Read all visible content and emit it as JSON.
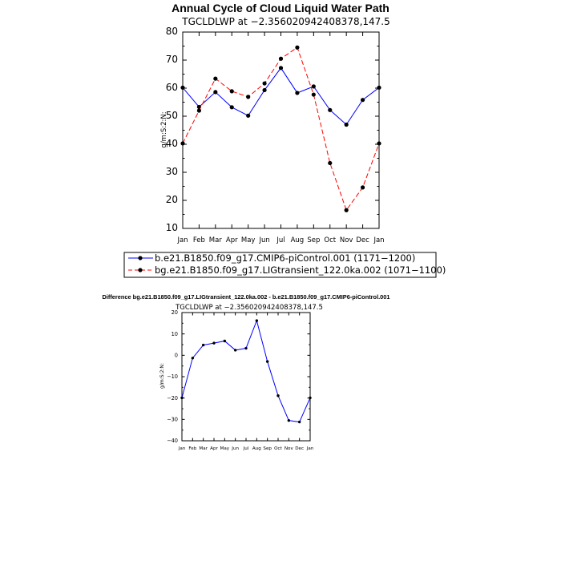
{
  "chart_data": [
    {
      "type": "line",
      "title": "Annual Cycle of Cloud Liquid Water Path",
      "subtitle": "TGCLDLWP at −2.356020942408378,147.5",
      "xlabel": "",
      "ylabel": "g/m:S:2:N:",
      "categories": [
        "Jan",
        "Feb",
        "Mar",
        "Apr",
        "May",
        "Jun",
        "Jul",
        "Aug",
        "Sep",
        "Oct",
        "Nov",
        "Dec",
        "Jan"
      ],
      "ylim": [
        10,
        80
      ],
      "yticks": [
        "80",
        "70",
        "60",
        "50",
        "40",
        "30",
        "20",
        "10"
      ],
      "series": [
        {
          "name": "b.e21.B1850.f09_g17.CMIP6-piControl.001 (1171−1200)",
          "color": "#0000ff",
          "dash": "solid",
          "values": [
            60.2,
            53.3,
            58.6,
            53.2,
            50.2,
            59.3,
            67.2,
            58.3,
            60.6,
            52.2,
            47.0,
            55.8,
            60.2
          ]
        },
        {
          "name": "bg.e21.B1850.f09_g17.LIGtransient_122.0ka.002 (1071−1100)",
          "color": "#ff0000",
          "dash": "dashed",
          "values": [
            40.3,
            52.0,
            63.4,
            58.9,
            56.9,
            61.7,
            70.5,
            74.5,
            57.7,
            33.3,
            16.5,
            24.6,
            40.3
          ]
        }
      ]
    },
    {
      "type": "line",
      "title": "Difference bg.e21.B1850.f09_g17.LIGtransient_122.0ka.002 - b.e21.B1850.f09_g17.CMIP6-piControl.001",
      "subtitle": "TGCLDLWP at −2.356020942408378,147.5",
      "xlabel": "",
      "ylabel": "g/m:S:2:N:",
      "categories": [
        "Jan",
        "Feb",
        "Mar",
        "Apr",
        "May",
        "Jun",
        "Jul",
        "Aug",
        "Sep",
        "Oct",
        "Nov",
        "Dec",
        "Jan"
      ],
      "ylim": [
        -40,
        20
      ],
      "yticks": [
        "20",
        "10",
        "0",
        "−10",
        "−20",
        "−30",
        "−40"
      ],
      "series": [
        {
          "name": "Difference",
          "color": "#0000ff",
          "dash": "solid",
          "values": [
            -19.9,
            -1.3,
            4.8,
            5.7,
            6.7,
            2.4,
            3.3,
            16.2,
            -2.9,
            -18.9,
            -30.5,
            -31.2,
            -19.9
          ]
        }
      ]
    }
  ]
}
